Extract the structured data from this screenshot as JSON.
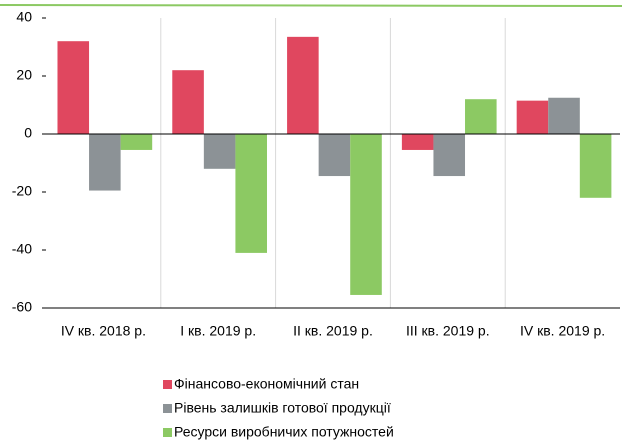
{
  "chart_data": {
    "type": "bar",
    "categories": [
      "IV кв. 2018 р.",
      "I кв. 2019 р.",
      "II кв. 2019 р.",
      "III кв. 2019 р.",
      "IV кв. 2019 р."
    ],
    "series": [
      {
        "name": "Фінансово-економічний стан",
        "color": "#e0475f",
        "values": [
          32,
          22,
          33.5,
          -5.5,
          11.5
        ]
      },
      {
        "name": "Рівень залишків готової продукції",
        "color": "#8c9296",
        "values": [
          -19.5,
          -12,
          -14.5,
          -14.5,
          12.5
        ]
      },
      {
        "name": "Ресурси виробничих потужностей",
        "color": "#8cc963",
        "values": [
          -5.5,
          -41,
          -55.5,
          12,
          -22
        ]
      }
    ],
    "ylim": [
      -60,
      40
    ],
    "yticks": [
      -60,
      -40,
      -20,
      0,
      20,
      40
    ]
  }
}
